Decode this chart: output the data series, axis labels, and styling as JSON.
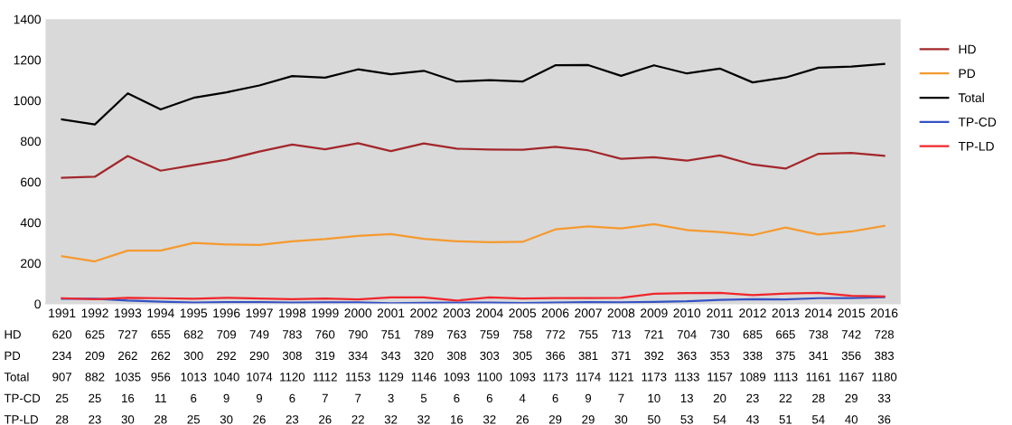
{
  "chart_data": {
    "type": "line",
    "categories": [
      "1991",
      "1992",
      "1993",
      "1994",
      "1995",
      "1996",
      "1997",
      "1998",
      "1999",
      "2000",
      "2001",
      "2002",
      "2003",
      "2004",
      "2005",
      "2006",
      "2007",
      "2008",
      "2009",
      "2010",
      "2011",
      "2012",
      "2013",
      "2014",
      "2015",
      "2016"
    ],
    "series": [
      {
        "name": "HD",
        "color": "#a3272b",
        "values": [
          620,
          625,
          727,
          655,
          682,
          709,
          749,
          783,
          760,
          790,
          751,
          789,
          763,
          759,
          758,
          772,
          755,
          713,
          721,
          704,
          730,
          685,
          665,
          738,
          742,
          728
        ]
      },
      {
        "name": "PD",
        "color": "#f59a2f",
        "values": [
          234,
          209,
          262,
          262,
          300,
          292,
          290,
          308,
          319,
          334,
          343,
          320,
          308,
          303,
          305,
          366,
          381,
          371,
          392,
          363,
          353,
          338,
          375,
          341,
          356,
          383
        ]
      },
      {
        "name": "Total",
        "color": "#000000",
        "values": [
          907,
          882,
          1035,
          956,
          1013,
          1040,
          1074,
          1120,
          1112,
          1153,
          1129,
          1146,
          1093,
          1100,
          1093,
          1173,
          1174,
          1121,
          1173,
          1133,
          1157,
          1089,
          1113,
          1161,
          1167,
          1180
        ]
      },
      {
        "name": "TP-CD",
        "color": "#3552c4",
        "values": [
          25,
          25,
          16,
          11,
          6,
          9,
          9,
          6,
          7,
          7,
          3,
          5,
          6,
          6,
          4,
          6,
          9,
          7,
          10,
          13,
          20,
          23,
          22,
          28,
          29,
          33
        ]
      },
      {
        "name": "TP-LD",
        "color": "#f0262c",
        "values": [
          28,
          23,
          30,
          28,
          25,
          30,
          26,
          23,
          26,
          22,
          32,
          32,
          16,
          32,
          26,
          29,
          29,
          30,
          50,
          53,
          54,
          43,
          51,
          54,
          40,
          36
        ]
      }
    ],
    "ylim": [
      0,
      1400
    ],
    "yticks": [
      0,
      200,
      400,
      600,
      800,
      1000,
      1200,
      1400
    ],
    "grid": false,
    "legend": "right",
    "marker": "none",
    "line_style": "solid",
    "data_labels": true
  }
}
